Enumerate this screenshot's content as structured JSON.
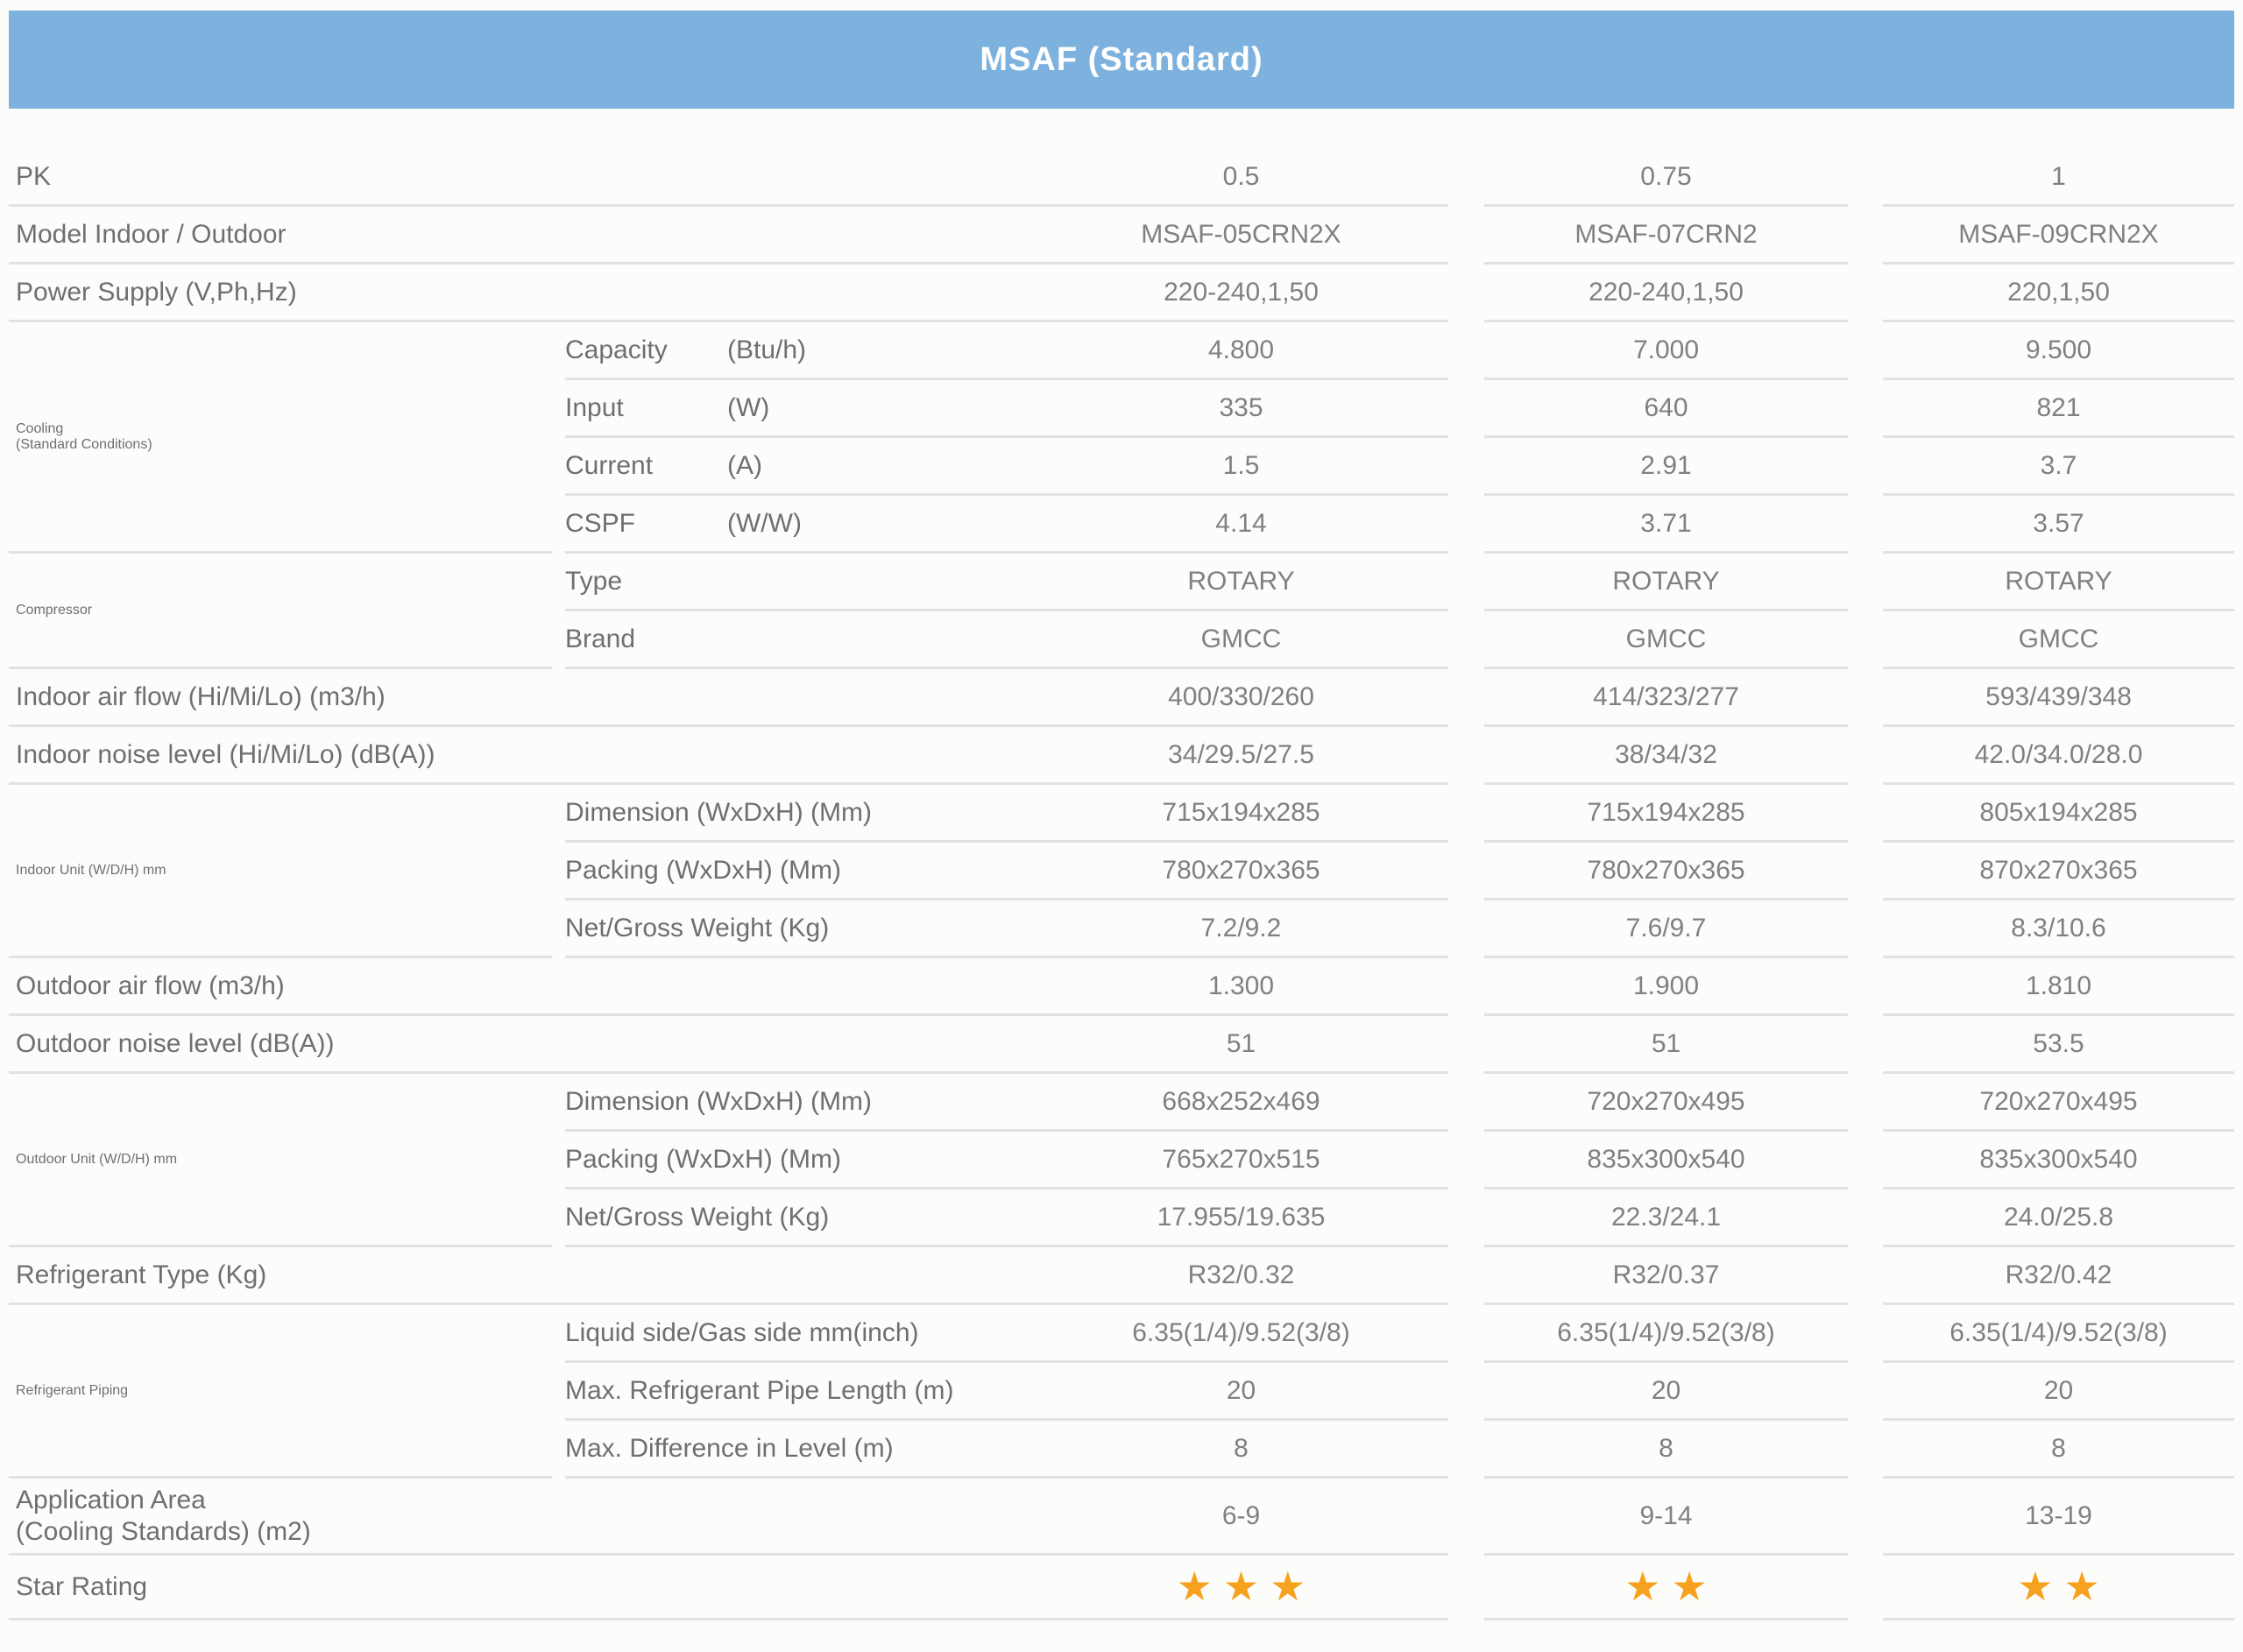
{
  "title": "MSAF (Standard)",
  "colors": {
    "banner": "#7EB2DE",
    "banner_text": "#FFFFFF",
    "label_text": "#6E6F72",
    "value_text": "#7E8083",
    "divider_line": "#E2E2E2",
    "background": "#FCFCFA",
    "star": "#F6A21E"
  },
  "table": {
    "rows": [
      {
        "kind": "simple",
        "label": "PK",
        "values": [
          "0.5",
          "0.75",
          "1"
        ]
      },
      {
        "kind": "simple",
        "label": "Model Indoor / Outdoor",
        "values": [
          "MSAF-05CRN2X",
          "MSAF-07CRN2",
          "MSAF-09CRN2X"
        ]
      },
      {
        "kind": "simple",
        "label": "Power Supply (V,Ph,Hz)",
        "values": [
          "220-240,1,50",
          "220-240,1,50",
          "220,1,50"
        ]
      },
      {
        "kind": "group",
        "label": "Cooling\n(Standard Conditions)",
        "subrows": [
          {
            "name": "Capacity",
            "unit": "(Btu/h)",
            "values": [
              "4.800",
              "7.000",
              "9.500"
            ]
          },
          {
            "name": "Input",
            "unit": "(W)",
            "values": [
              "335",
              "640",
              "821"
            ]
          },
          {
            "name": "Current",
            "unit": "(A)",
            "values": [
              "1.5",
              "2.91",
              "3.7"
            ]
          },
          {
            "name": "CSPF",
            "unit": "(W/W)",
            "values": [
              "4.14",
              "3.71",
              "3.57"
            ]
          }
        ]
      },
      {
        "kind": "group",
        "label": "Compressor",
        "subrows": [
          {
            "name": "Type",
            "unit": "",
            "values": [
              "ROTARY",
              "ROTARY",
              "ROTARY"
            ]
          },
          {
            "name": "Brand",
            "unit": "",
            "values": [
              "GMCC",
              "GMCC",
              "GMCC"
            ]
          }
        ]
      },
      {
        "kind": "simple",
        "label": "Indoor air flow (Hi/Mi/Lo) (m3/h)",
        "values": [
          "400/330/260",
          "414/323/277",
          "593/439/348"
        ]
      },
      {
        "kind": "simple",
        "label": "Indoor noise level (Hi/Mi/Lo) (dB(A))",
        "values": [
          "34/29.5/27.5",
          "38/34/32",
          "42.0/34.0/28.0"
        ]
      },
      {
        "kind": "group",
        "label": "Indoor Unit (W/D/H) mm",
        "subrows": [
          {
            "name": "Dimension (WxDxH) (Mm)",
            "unit": "",
            "values": [
              "715x194x285",
              "715x194x285",
              "805x194x285"
            ]
          },
          {
            "name": "Packing (WxDxH) (Mm)",
            "unit": "",
            "values": [
              "780x270x365",
              "780x270x365",
              "870x270x365"
            ]
          },
          {
            "name": "Net/Gross Weight (Kg)",
            "unit": "",
            "values": [
              "7.2/9.2",
              "7.6/9.7",
              "8.3/10.6"
            ]
          }
        ]
      },
      {
        "kind": "simple",
        "label": "Outdoor air flow (m3/h)",
        "values": [
          "1.300",
          "1.900",
          "1.810"
        ]
      },
      {
        "kind": "simple",
        "label": "Outdoor noise level (dB(A))",
        "values": [
          "51",
          "51",
          "53.5"
        ]
      },
      {
        "kind": "group",
        "label": "Outdoor Unit (W/D/H) mm",
        "subrows": [
          {
            "name": "Dimension (WxDxH) (Mm)",
            "unit": "",
            "values": [
              "668x252x469",
              "720x270x495",
              "720x270x495"
            ]
          },
          {
            "name": "Packing (WxDxH) (Mm)",
            "unit": "",
            "values": [
              "765x270x515",
              "835x300x540",
              "835x300x540"
            ]
          },
          {
            "name": "Net/Gross Weight (Kg)",
            "unit": "",
            "values": [
              "17.955/19.635",
              "22.3/24.1",
              "24.0/25.8"
            ]
          }
        ]
      },
      {
        "kind": "simple",
        "label": "Refrigerant Type (Kg)",
        "values": [
          "R32/0.32",
          "R32/0.37",
          "R32/0.42"
        ]
      },
      {
        "kind": "group",
        "label": "Refrigerant Piping",
        "subrows": [
          {
            "name": "Liquid side/Gas side mm(inch)",
            "unit": "",
            "values": [
              "6.35(1/4)/9.52(3/8)",
              "6.35(1/4)/9.52(3/8)",
              "6.35(1/4)/9.52(3/8)"
            ]
          },
          {
            "name": "Max. Refrigerant Pipe Length (m)",
            "unit": "",
            "values": [
              "20",
              "20",
              "20"
            ]
          },
          {
            "name": "Max. Difference in Level (m)",
            "unit": "",
            "values": [
              "8",
              "8",
              "8"
            ]
          }
        ]
      },
      {
        "kind": "simple",
        "tall": true,
        "label": "Application Area\n(Cooling Standards) (m2)",
        "values": [
          "6-9",
          "9-14",
          "13-19"
        ]
      },
      {
        "kind": "stars",
        "label": "Star Rating",
        "stars": [
          3,
          2,
          2
        ]
      }
    ]
  }
}
